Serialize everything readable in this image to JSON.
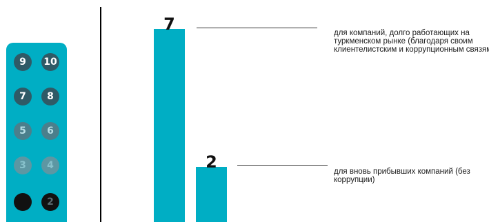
{
  "scale": {
    "top_to_bottom": [
      {
        "label": "9",
        "level": "full"
      },
      {
        "label": "10",
        "level": "full"
      },
      {
        "label": "7",
        "level": "full"
      },
      {
        "label": "8",
        "level": "full"
      },
      {
        "label": "5",
        "level": "mid"
      },
      {
        "label": "6",
        "level": "mid"
      },
      {
        "label": "3",
        "level": "low"
      },
      {
        "label": "4",
        "level": "low"
      },
      {
        "label": "",
        "level": "dark"
      },
      {
        "label": "2",
        "level": "dark"
      }
    ],
    "colors": {
      "panel": "#00aec4",
      "full_fill": "#2f5a66",
      "full_text": "#ffffff",
      "mid_fill": "#4b7f8c",
      "mid_text": "#b8dfe6",
      "low_fill": "#5d97a3",
      "low_text": "#88c2cc",
      "dark_fill": "#111111",
      "dark_text": "#5a6a70"
    }
  },
  "chart_data": {
    "type": "bar",
    "values": [
      7,
      2
    ],
    "value_labels": [
      "7",
      "2"
    ],
    "annotations": [
      "для компаний, долго работающих на туркменском рынке (благодаря своим клиентелистским и коррупционным связям)",
      "для вновь прибывших компаний (без коррупции)"
    ],
    "ylim": [
      0,
      7.35
    ],
    "bar_color": "#00aec4",
    "leader_color": "#333333"
  }
}
